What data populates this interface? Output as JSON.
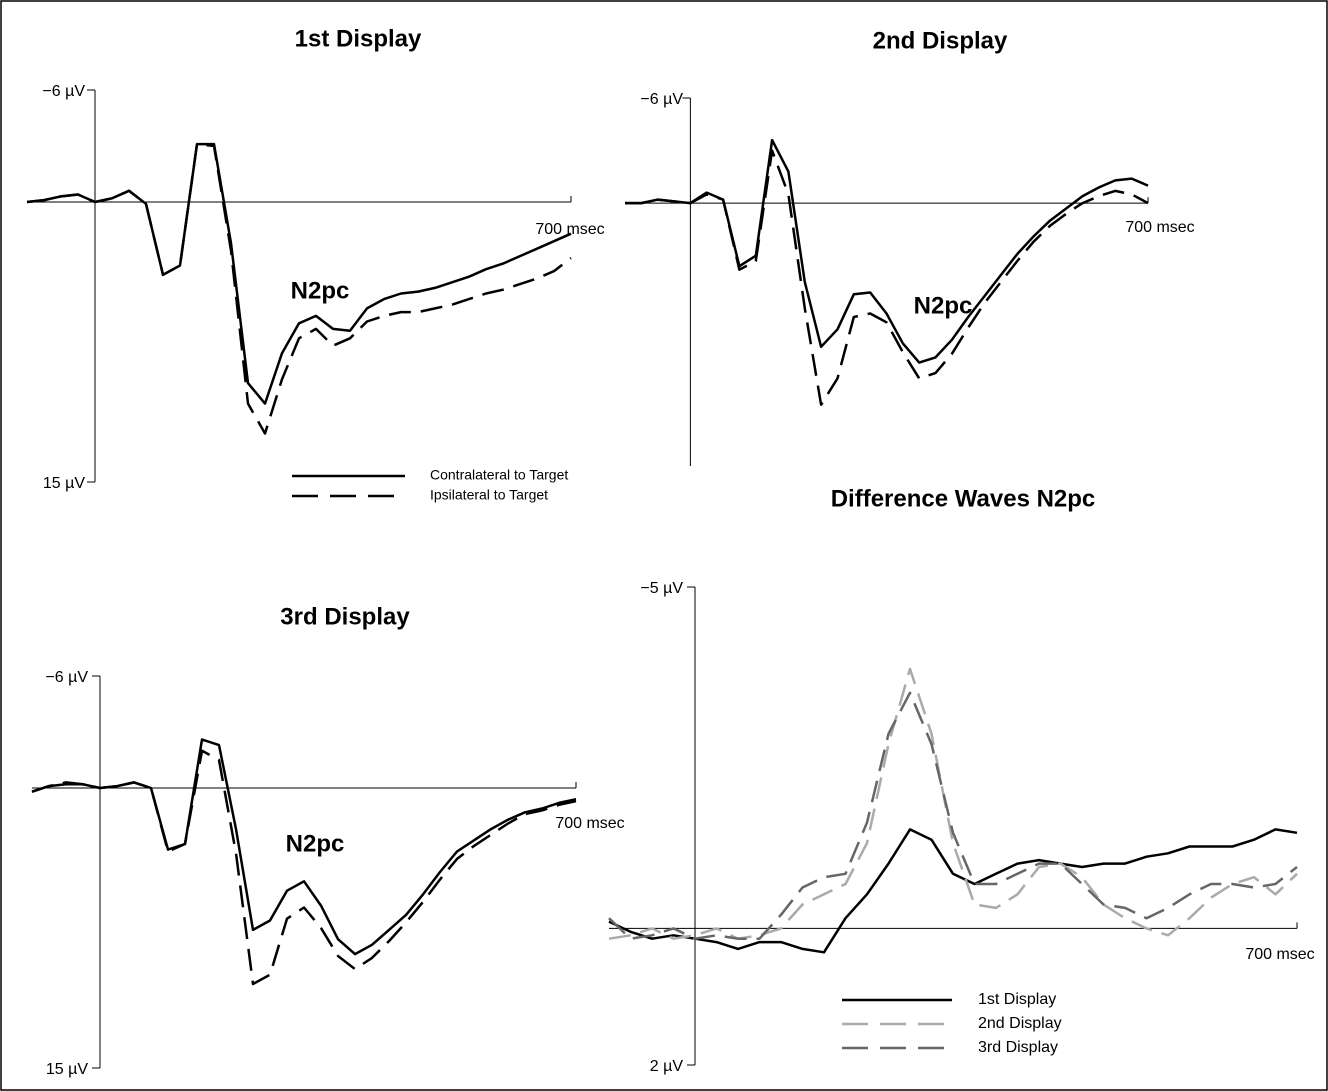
{
  "chart_data": [
    {
      "type": "line",
      "title": "1st Display",
      "annotations": [
        "N2pc"
      ],
      "x": [
        -100,
        -75,
        -50,
        -25,
        0,
        25,
        50,
        75,
        100,
        125,
        150,
        175,
        200,
        225,
        250,
        275,
        300,
        325,
        350,
        375,
        400,
        425,
        450,
        475,
        500,
        525,
        550,
        575,
        600,
        625,
        650,
        675,
        700
      ],
      "xlim": [
        -100,
        700
      ],
      "xticks": [
        {
          "value": 700,
          "label": "700 msec"
        }
      ],
      "ylim": [
        -6,
        15
      ],
      "yticks": [
        {
          "value": -6,
          "label": "−6 µV"
        },
        {
          "value": 15,
          "label": "15 µV"
        }
      ],
      "y_inverted": true,
      "series": [
        {
          "name": "Contralateral to Target",
          "color": "#000000",
          "style": "solid",
          "values": [
            0,
            -0.1,
            -0.3,
            -0.4,
            0,
            -0.2,
            -0.6,
            0.1,
            3.9,
            3.4,
            -3.1,
            -3.1,
            2.2,
            9.7,
            10.8,
            8.1,
            6.5,
            6.1,
            6.8,
            6.9,
            5.7,
            5.2,
            4.9,
            4.8,
            4.6,
            4.3,
            4.0,
            3.6,
            3.3,
            2.9,
            2.5,
            2.1,
            1.7
          ]
        },
        {
          "name": "Ipsilateral to Target",
          "color": "#000000",
          "style": "dashed",
          "values": [
            0,
            -0.1,
            -0.3,
            -0.4,
            0,
            -0.2,
            -0.6,
            0.1,
            3.9,
            3.4,
            -3.1,
            -3.0,
            2.6,
            10.8,
            12.4,
            9.5,
            7.3,
            6.8,
            7.7,
            7.3,
            6.4,
            6.1,
            5.9,
            5.9,
            5.7,
            5.5,
            5.2,
            4.9,
            4.7,
            4.4,
            4.1,
            3.7,
            3.0
          ]
        }
      ]
    },
    {
      "type": "line",
      "title": "2nd Display",
      "annotations": [
        "N2pc"
      ],
      "x": [
        -100,
        -75,
        -50,
        -25,
        0,
        25,
        50,
        75,
        100,
        125,
        150,
        175,
        200,
        225,
        250,
        275,
        300,
        325,
        350,
        375,
        400,
        425,
        450,
        475,
        500,
        525,
        550,
        575,
        600,
        625,
        650,
        675,
        700
      ],
      "xlim": [
        -100,
        700
      ],
      "xticks": [
        {
          "value": 700,
          "label": "700 msec"
        }
      ],
      "ylim": [
        -6,
        15
      ],
      "yticks": [
        {
          "value": -6,
          "label": "−6 µV"
        }
      ],
      "y_inverted": true,
      "series": [
        {
          "color": "#000000",
          "style": "solid",
          "values": [
            0,
            0,
            -0.2,
            -0.1,
            0,
            -0.6,
            -0.2,
            3.6,
            3.0,
            -3.6,
            -1.8,
            4.5,
            8.2,
            7.2,
            5.2,
            5.1,
            6.3,
            8.0,
            9.1,
            8.8,
            7.8,
            6.5,
            5.3,
            4.1,
            2.9,
            1.9,
            1.0,
            0.3,
            -0.4,
            -0.9,
            -1.3,
            -1.4,
            -1.0
          ]
        },
        {
          "color": "#000000",
          "style": "dashed",
          "values": [
            0,
            0,
            -0.2,
            -0.1,
            0,
            -0.5,
            -0.2,
            3.8,
            3.3,
            -3.0,
            -0.5,
            6.0,
            11.5,
            10.0,
            6.5,
            6.3,
            6.8,
            8.5,
            10.0,
            9.7,
            8.6,
            7.1,
            5.7,
            4.5,
            3.3,
            2.2,
            1.3,
            0.6,
            0,
            -0.4,
            -0.7,
            -0.5,
            0
          ]
        }
      ]
    },
    {
      "type": "line",
      "title": "3rd Display",
      "annotations": [
        "N2pc"
      ],
      "x": [
        -100,
        -75,
        -50,
        -25,
        0,
        25,
        50,
        75,
        100,
        125,
        150,
        175,
        200,
        225,
        250,
        275,
        300,
        325,
        350,
        375,
        400,
        425,
        450,
        475,
        500,
        525,
        550,
        575,
        600,
        625,
        650,
        675,
        700
      ],
      "xlim": [
        -100,
        700
      ],
      "xticks": [
        {
          "value": 700,
          "label": "700 msec"
        }
      ],
      "ylim": [
        -6,
        15
      ],
      "yticks": [
        {
          "value": -6,
          "label": "−6 µV"
        },
        {
          "value": 15,
          "label": "15 µV"
        }
      ],
      "y_inverted": true,
      "series": [
        {
          "color": "#000000",
          "style": "solid",
          "values": [
            0.2,
            -0.1,
            -0.2,
            -0.2,
            0,
            -0.1,
            -0.3,
            0,
            3.3,
            3.0,
            -2.6,
            -2.3,
            2.2,
            7.6,
            7.1,
            5.5,
            5.0,
            6.3,
            8.1,
            8.9,
            8.4,
            7.6,
            6.8,
            5.7,
            4.5,
            3.4,
            2.8,
            2.2,
            1.7,
            1.3,
            1.1,
            0.8,
            0.6
          ]
        },
        {
          "color": "#000000",
          "style": "dashed",
          "values": [
            0.2,
            -0.1,
            -0.3,
            -0.2,
            0,
            -0.1,
            -0.3,
            0,
            3.4,
            3.0,
            -2.0,
            -1.5,
            3.5,
            10.5,
            10.0,
            7.0,
            6.4,
            7.5,
            9.0,
            9.7,
            9.1,
            8.2,
            7.2,
            6.1,
            4.9,
            3.8,
            3.1,
            2.5,
            1.9,
            1.4,
            1.2,
            0.9,
            0.7
          ]
        }
      ]
    },
    {
      "type": "line",
      "title": "Difference Waves N2pc",
      "x": [
        -100,
        -75,
        -50,
        -25,
        0,
        25,
        50,
        75,
        100,
        125,
        150,
        175,
        200,
        225,
        250,
        275,
        300,
        325,
        350,
        375,
        400,
        425,
        450,
        475,
        500,
        525,
        550,
        575,
        600,
        625,
        650,
        675,
        700
      ],
      "xlim": [
        -100,
        700
      ],
      "xticks": [
        {
          "value": 700,
          "label": "700 msec"
        }
      ],
      "ylim": [
        -5,
        2
      ],
      "yticks": [
        {
          "value": -5,
          "label": "−5 µV"
        },
        {
          "value": 2,
          "label": "2 µV"
        }
      ],
      "y_inverted": true,
      "series": [
        {
          "name": "1st Display",
          "color": "#000000",
          "style": "solid",
          "values": [
            -0.1,
            0.05,
            0.15,
            0.1,
            0.15,
            0.2,
            0.3,
            0.2,
            0.2,
            0.3,
            0.35,
            -0.15,
            -0.5,
            -0.95,
            -1.45,
            -1.3,
            -0.8,
            -0.65,
            -0.8,
            -0.95,
            -1.0,
            -0.95,
            -0.9,
            -0.95,
            -0.95,
            -1.05,
            -1.1,
            -1.2,
            -1.2,
            -1.2,
            -1.3,
            -1.45,
            -1.4
          ]
        },
        {
          "name": "2nd Display",
          "color": "#aaaaaa",
          "style": "dashed",
          "values": [
            0.15,
            0.1,
            0,
            0.15,
            0.1,
            0,
            0.15,
            0.1,
            0,
            -0.35,
            -0.5,
            -0.65,
            -1.25,
            -2.7,
            -3.8,
            -2.85,
            -1.25,
            -0.35,
            -0.3,
            -0.5,
            -0.9,
            -0.95,
            -0.75,
            -0.35,
            -0.15,
            0,
            0.1,
            -0.15,
            -0.45,
            -0.65,
            -0.75,
            -0.5,
            -0.8
          ]
        },
        {
          "name": "3rd Display",
          "color": "#666666",
          "style": "dashed",
          "values": [
            -0.15,
            0.15,
            0.1,
            0,
            0.15,
            0.1,
            0.15,
            0.15,
            -0.2,
            -0.6,
            -0.75,
            -0.8,
            -1.55,
            -2.85,
            -3.45,
            -2.7,
            -1.4,
            -0.65,
            -0.65,
            -0.8,
            -0.95,
            -0.95,
            -0.65,
            -0.35,
            -0.3,
            -0.15,
            -0.3,
            -0.5,
            -0.65,
            -0.65,
            -0.6,
            -0.65,
            -0.9
          ]
        }
      ]
    }
  ]
}
